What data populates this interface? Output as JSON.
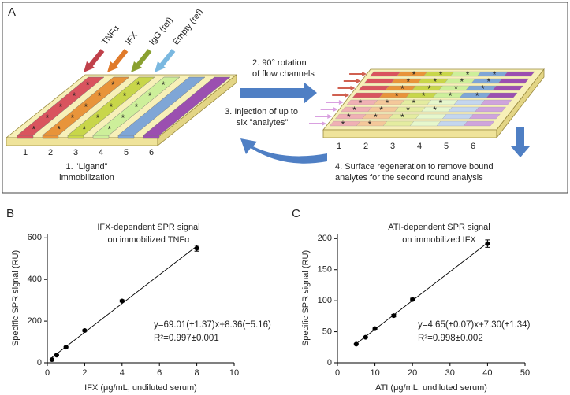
{
  "diagram": {
    "panel_label": "A",
    "channel_labels": [
      "TNFα",
      "IFX",
      "IgG (ref)",
      "Empty (ref)"
    ],
    "left_lane_labels": [
      "1",
      "2",
      "3",
      "4",
      "5",
      "6"
    ],
    "right_lane_labels": [
      "1",
      "2",
      "3",
      "4",
      "5",
      "6"
    ],
    "step1": [
      "1. \"Ligand\"",
      "immobilization"
    ],
    "step2": [
      "2. 90° rotation",
      "of flow channels"
    ],
    "step3": [
      "3. Injection of up to",
      "six \"analytes\""
    ],
    "step4": [
      "4. Surface regeneration to remove bound",
      "analytes for the second round analysis"
    ]
  },
  "chart_data": [
    {
      "type": "scatter",
      "panel_label": "B",
      "title": [
        "IFX-dependent SPR signal",
        "on immobilized TNFα"
      ],
      "x_label": "IFX (μg/mL, undiluted serum)",
      "y_label": "Specific SPR signal (RU)",
      "x": [
        0.25,
        0.5,
        1,
        2,
        4,
        8
      ],
      "values": [
        15,
        37,
        75,
        155,
        297,
        550
      ],
      "errors": [
        2,
        2,
        3,
        4,
        5,
        14
      ],
      "fit": {
        "slope": 69.01,
        "intercept": 8.36
      },
      "annotations": [
        "y=69.01(±1.37)x+8.36(±5.16)",
        "R²=0.997±0.001"
      ],
      "xlim": [
        0,
        10
      ],
      "xticks": [
        0,
        2,
        4,
        6,
        8,
        10
      ],
      "ylim": [
        0,
        620
      ],
      "yticks": [
        0,
        200,
        400,
        600
      ],
      "color": "#000000"
    },
    {
      "type": "scatter",
      "panel_label": "C",
      "title": [
        "ATI-dependent SPR signal",
        "on immobilized IFX"
      ],
      "x_label": "ATI (μg/mL, undiluted serum)",
      "y_label": "Specific SPR signal (RU)",
      "x": [
        5,
        7.5,
        10,
        15,
        20,
        40
      ],
      "values": [
        30,
        41,
        55,
        76,
        102,
        192
      ],
      "errors": [
        1,
        1,
        1,
        2,
        2,
        6
      ],
      "fit": {
        "slope": 4.65,
        "intercept": 7.3
      },
      "annotations": [
        "y=4.65(±0.07)x+7.30(±1.34)",
        "R²=0.998±0.002"
      ],
      "xlim": [
        0,
        50
      ],
      "xticks": [
        0,
        10,
        20,
        30,
        40,
        50
      ],
      "ylim": [
        0,
        208
      ],
      "yticks": [
        0,
        50,
        100,
        150,
        200
      ],
      "color": "#000000"
    }
  ]
}
